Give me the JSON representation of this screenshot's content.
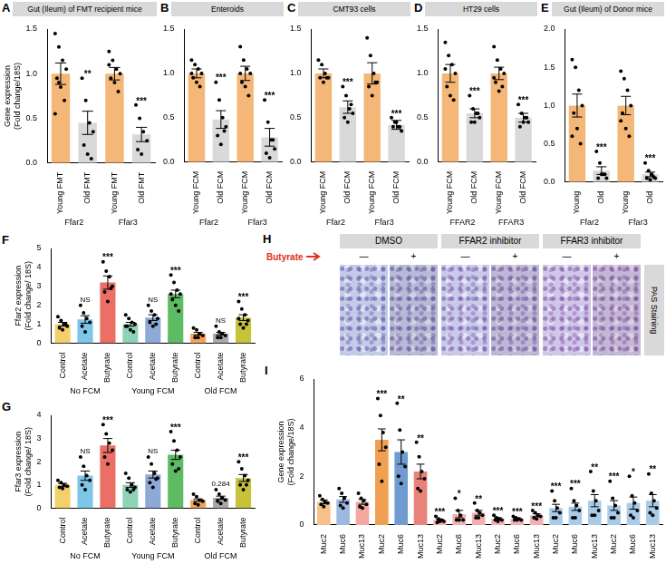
{
  "chart_data": [
    {
      "panel": "A",
      "title": "Gut (Ileum) of FMT recipient mice",
      "type": "bar",
      "y_label": [
        "Gene expression",
        "(Fold change/18S)"
      ],
      "categories": [
        "Young FMT",
        "Old FMT",
        "Young FMT",
        "Old FMT"
      ],
      "group_labels": [
        "Ffar2",
        "Ffar2",
        "Ffar3",
        "Ffar3"
      ],
      "values": [
        1.0,
        0.45,
        1.0,
        0.32
      ],
      "errors": [
        0.12,
        0.13,
        0.07,
        0.08
      ],
      "points": [
        [
          1.45,
          1.3,
          1.15,
          1.05,
          0.95,
          0.85,
          0.7,
          0.55,
          0.9
        ],
        [
          0.95,
          0.7,
          0.45,
          0.35,
          0.2,
          0.1,
          0.05
        ],
        [
          1.25,
          1.15,
          1.05,
          1.0,
          0.95,
          0.9,
          0.8,
          1.1
        ],
        [
          0.65,
          0.5,
          0.35,
          0.25,
          0.15,
          0.1
        ]
      ],
      "colors": [
        "#f4b778",
        "#d9d9d9",
        "#f4b778",
        "#d9d9d9"
      ],
      "annotations": [
        null,
        "**",
        null,
        "***"
      ],
      "ylim": [
        0,
        1.5
      ],
      "yticks": [
        {
          "value": 0,
          "label": "0.0"
        },
        0.5,
        {
          "value": 1,
          "label": "1.0"
        },
        1.5
      ],
      "marker": "circle",
      "grid": false
    },
    {
      "panel": "B",
      "title": "Enteroids",
      "type": "bar",
      "categories": [
        "Young FCM",
        "Old FCM",
        "Young FCM",
        "Old FCM"
      ],
      "group_labels": [
        "Ffar2",
        "Ffar2",
        "Ffar3",
        "Ffar3"
      ],
      "values": [
        1.0,
        0.48,
        1.0,
        0.28
      ],
      "errors": [
        0.05,
        0.1,
        0.08,
        0.1
      ],
      "points": [
        [
          1.15,
          1.1,
          1.05,
          1.0,
          0.95,
          0.9,
          0.85,
          1.0
        ],
        [
          0.9,
          0.7,
          0.5,
          0.4,
          0.3,
          0.2,
          0.35
        ],
        [
          1.3,
          1.15,
          1.05,
          1.0,
          0.9,
          0.85,
          0.75,
          1.0
        ],
        [
          0.7,
          0.45,
          0.25,
          0.15,
          0.1,
          0.05,
          0.25
        ]
      ],
      "colors": [
        "#f4b778",
        "#d9d9d9",
        "#f4b778",
        "#d9d9d9"
      ],
      "annotations": [
        null,
        "***",
        null,
        "***"
      ],
      "ylim": [
        0,
        1.5
      ],
      "yticks": [
        {
          "value": 0,
          "label": "0.0"
        },
        0.5,
        {
          "value": 1,
          "label": "1.0"
        },
        1.5
      ],
      "marker": "circle",
      "grid": false
    },
    {
      "panel": "C",
      "title": "CMT93 cells",
      "type": "bar",
      "categories": [
        "Young FCM",
        "Old FCM",
        "Young FCM",
        "Old FCM"
      ],
      "group_labels": [
        "Ffar2",
        "Ffar2",
        "Ffar3",
        "Ffar3"
      ],
      "values": [
        1.0,
        0.62,
        1.0,
        0.42
      ],
      "errors": [
        0.05,
        0.07,
        0.12,
        0.05
      ],
      "points": [
        [
          1.15,
          1.1,
          1.0,
          0.95,
          0.95,
          0.9,
          0.95
        ],
        [
          0.85,
          0.75,
          0.6,
          0.55,
          0.5,
          0.45,
          0.65
        ],
        [
          1.4,
          1.2,
          1.0,
          0.9,
          0.85,
          0.75,
          0.9
        ],
        [
          0.5,
          0.45,
          0.4,
          0.35,
          0.4,
          0.45,
          0.4
        ]
      ],
      "colors": [
        "#f4b778",
        "#d9d9d9",
        "#f4b778",
        "#d9d9d9"
      ],
      "annotations": [
        null,
        "***",
        null,
        "***"
      ],
      "ylim": [
        0,
        1.5
      ],
      "yticks": [
        {
          "value": 0,
          "label": "0.0"
        },
        0.5,
        {
          "value": 1,
          "label": "1.0"
        },
        1.5
      ],
      "marker": "circle",
      "grid": false
    },
    {
      "panel": "D",
      "title": "HT29 cells",
      "type": "bar",
      "categories": [
        "Young FCM",
        "Old FCM",
        "Young FCM",
        "Old FCM"
      ],
      "group_labels": [
        "FFAR2",
        "FFAR2",
        "FFAR3",
        "FFAR3"
      ],
      "values": [
        1.0,
        0.55,
        1.0,
        0.5
      ],
      "errors": [
        0.1,
        0.05,
        0.07,
        0.05
      ],
      "points": [
        [
          1.35,
          1.2,
          1.1,
          1.0,
          0.85,
          0.75,
          0.7,
          1.05
        ],
        [
          0.75,
          0.6,
          0.55,
          0.5,
          0.45,
          0.45,
          0.55
        ],
        [
          1.3,
          1.15,
          1.05,
          1.0,
          0.9,
          0.8,
          0.85,
          0.95
        ],
        [
          0.65,
          0.55,
          0.5,
          0.45,
          0.4,
          0.45,
          0.5
        ]
      ],
      "colors": [
        "#f4b778",
        "#d9d9d9",
        "#f4b778",
        "#d9d9d9"
      ],
      "annotations": [
        null,
        "***",
        null,
        "***"
      ],
      "ylim": [
        0,
        1.5
      ],
      "yticks": [
        {
          "value": 0,
          "label": "0.0"
        },
        0.5,
        {
          "value": 1,
          "label": "1.0"
        },
        1.5
      ],
      "marker": "circle",
      "grid": false
    },
    {
      "panel": "E",
      "title": "Gut (Ileum) of Donor mice",
      "type": "bar",
      "categories": [
        "Young",
        "Old",
        "Young",
        "Old"
      ],
      "group_labels": [
        "Ffar2",
        "Ffar2",
        "Ffar3",
        "Ffar3"
      ],
      "values": [
        1.0,
        0.15,
        1.0,
        0.1
      ],
      "errors": [
        0.15,
        0.05,
        0.12,
        0.03
      ],
      "points": [
        [
          1.6,
          1.5,
          1.2,
          1.0,
          0.9,
          0.7,
          0.5,
          0.6
        ],
        [
          0.4,
          0.25,
          0.1,
          0.05,
          0.05,
          0.1,
          0.1
        ],
        [
          1.45,
          1.35,
          1.2,
          1.0,
          0.9,
          0.7,
          0.6,
          0.8
        ],
        [
          0.25,
          0.15,
          0.1,
          0.05,
          0.05,
          0.03,
          0.07
        ]
      ],
      "colors": [
        "#f4b778",
        "#d9d9d9",
        "#f4b778",
        "#d9d9d9"
      ],
      "annotations": [
        null,
        "***",
        null,
        "***"
      ],
      "ylim": [
        0,
        2
      ],
      "yticks": [
        {
          "value": 0,
          "label": "0.0"
        },
        0.5,
        {
          "value": 1,
          "label": "1.0"
        },
        1.5,
        {
          "value": 2,
          "label": "2.0"
        }
      ],
      "marker": "circle",
      "grid": false
    },
    {
      "panel": "F",
      "type": "bar",
      "y_label": [
        "Ffar2 expression",
        "(Fold change/ 18S)"
      ],
      "categories": [
        "Control",
        "Acetate",
        "Butyrate",
        "Control",
        "Acetate",
        "Butyrate",
        "Control",
        "Acetate",
        "Butyrate"
      ],
      "group_labels": [
        "No FCM",
        "No FCM",
        "No FCM",
        "Young FCM",
        "Young FCM",
        "Young FCM",
        "Old FCM",
        "Old FCM",
        "Old FCM"
      ],
      "values": [
        1.0,
        1.25,
        3.2,
        1.0,
        1.35,
        2.6,
        0.5,
        0.5,
        1.35
      ],
      "errors": [
        0.1,
        0.2,
        0.35,
        0.1,
        0.15,
        0.2,
        0.07,
        0.07,
        0.15
      ],
      "points": [
        [
          1.4,
          1.2,
          1.0,
          0.9,
          0.8,
          0.7,
          1.0
        ],
        [
          2.0,
          1.6,
          1.3,
          1.1,
          0.9,
          0.6
        ],
        [
          4.3,
          3.8,
          3.5,
          3.0,
          2.7,
          2.2,
          2.9
        ],
        [
          1.5,
          1.3,
          1.1,
          1.0,
          0.9,
          0.7,
          0.6,
          0.9
        ],
        [
          2.0,
          1.7,
          1.5,
          1.3,
          1.1,
          0.9,
          1.0
        ],
        [
          3.6,
          3.2,
          2.8,
          2.6,
          2.3,
          2.0,
          1.7,
          2.6
        ],
        [
          0.8,
          0.7,
          0.5,
          0.4,
          0.3,
          0.3
        ],
        [
          0.9,
          0.6,
          0.5,
          0.4,
          0.3,
          0.3
        ],
        [
          2.2,
          1.8,
          1.5,
          1.2,
          1.0,
          0.8,
          1.0,
          1.3
        ]
      ],
      "colors": [
        "#f2d06b",
        "#7dc6e8",
        "#ec6f66",
        "#8fd3b6",
        "#8fa9d6",
        "#5dbb63",
        "#f3a35c",
        "#a8a8a8",
        "#c7c23a"
      ],
      "annotations": [
        null,
        "NS",
        "***",
        null,
        "NS",
        "***",
        null,
        "NS",
        "***"
      ],
      "ylim": [
        0,
        5
      ],
      "yticks": [
        0,
        1,
        2,
        3,
        4,
        5
      ],
      "marker": "circle",
      "grid": false
    },
    {
      "panel": "G",
      "type": "bar",
      "y_label": [
        "Ffar3 expression",
        "(Fold change/ 18S)"
      ],
      "categories": [
        "Control",
        "Acetate",
        "Butyrate",
        "Control",
        "Acetate",
        "Butyrate",
        "Control",
        "Acetate",
        "Butyrate"
      ],
      "group_labels": [
        "No FCM",
        "No FCM",
        "No FCM",
        "Young FCM",
        "Young FCM",
        "Young FCM",
        "Old FCM",
        "Old FCM",
        "Old FCM"
      ],
      "values": [
        1.0,
        1.4,
        2.7,
        1.0,
        1.45,
        2.3,
        0.35,
        0.45,
        1.3
      ],
      "errors": [
        0.07,
        0.2,
        0.3,
        0.1,
        0.15,
        0.2,
        0.05,
        0.07,
        0.15
      ],
      "points": [
        [
          1.2,
          1.1,
          1.0,
          0.95,
          0.9,
          0.85
        ],
        [
          2.2,
          1.8,
          1.4,
          1.2,
          1.0,
          0.8
        ],
        [
          3.6,
          3.2,
          2.8,
          2.5,
          2.2,
          1.9
        ],
        [
          1.5,
          1.3,
          1.0,
          0.9,
          0.8,
          0.7,
          0.8
        ],
        [
          2.2,
          1.9,
          1.5,
          1.3,
          1.1,
          0.9,
          1.25
        ],
        [
          3.3,
          2.9,
          2.5,
          2.2,
          1.9,
          1.6,
          1.7
        ],
        [
          0.6,
          0.5,
          0.35,
          0.3,
          0.2,
          0.15
        ],
        [
          0.8,
          0.6,
          0.45,
          0.35,
          0.3,
          0.2
        ],
        [
          2.0,
          1.7,
          1.4,
          1.2,
          1.0,
          0.8,
          1.0
        ]
      ],
      "colors": [
        "#f2d06b",
        "#7dc6e8",
        "#ec6f66",
        "#8fd3b6",
        "#8fa9d6",
        "#5dbb63",
        "#f3a35c",
        "#a8a8a8",
        "#c7c23a"
      ],
      "annotations": [
        null,
        "NS",
        "***",
        null,
        "NS",
        "***",
        null,
        "0.284",
        "***"
      ],
      "ylim": [
        0,
        4
      ],
      "yticks": [
        0,
        1,
        2,
        3,
        4
      ],
      "marker": "circle",
      "grid": false
    },
    {
      "panel": "I",
      "type": "bar",
      "y_label": [
        "Gene expression",
        "(Fold change/18S)"
      ],
      "categories": [
        "Muc2",
        "Muc6",
        "Muc13",
        "Muc2",
        "Muc6",
        "Muc13",
        "Muc2",
        "Muc6",
        "Muc13",
        "Muc2",
        "Muc6",
        "Muc13",
        "Muc2",
        "Muc6",
        "Muc13",
        "Muc2",
        "Muc6",
        "Muc13"
      ],
      "values": [
        0.95,
        1.05,
        0.95,
        3.5,
        3.0,
        2.2,
        0.2,
        0.45,
        0.5,
        0.25,
        0.25,
        0.4,
        0.7,
        0.75,
        1.0,
        0.8,
        0.9,
        1.0
      ],
      "errors": [
        0.08,
        0.12,
        0.1,
        0.45,
        0.5,
        0.3,
        0.04,
        0.15,
        0.1,
        0.05,
        0.04,
        0.06,
        0.15,
        0.15,
        0.25,
        0.2,
        0.25,
        0.25
      ],
      "points": [
        [
          1.2,
          1.05,
          0.95,
          0.9,
          0.85,
          0.75
        ],
        [
          1.5,
          1.3,
          1.1,
          0.9,
          0.8,
          0.7
        ],
        [
          1.3,
          1.1,
          1.0,
          0.85,
          0.75,
          0.7
        ],
        [
          5.2,
          4.5,
          3.8,
          3.2,
          2.5,
          1.8
        ],
        [
          5.0,
          3.9,
          3.0,
          2.4,
          2.0,
          1.7
        ],
        [
          3.4,
          2.8,
          2.2,
          1.9,
          1.5,
          1.4
        ],
        [
          0.35,
          0.25,
          0.2,
          0.15,
          0.1,
          0.15
        ],
        [
          1.1,
          0.6,
          0.4,
          0.2,
          0.2,
          0.2
        ],
        [
          0.9,
          0.6,
          0.5,
          0.4,
          0.3,
          0.3
        ],
        [
          0.4,
          0.3,
          0.25,
          0.2,
          0.2,
          0.15
        ],
        [
          0.35,
          0.3,
          0.25,
          0.2,
          0.2,
          0.2
        ],
        [
          0.6,
          0.5,
          0.4,
          0.35,
          0.3,
          0.25
        ],
        [
          1.4,
          1.0,
          0.7,
          0.5,
          0.3,
          0.3
        ],
        [
          1.5,
          1.0,
          0.8,
          0.6,
          0.3,
          0.3
        ],
        [
          2.2,
          1.4,
          1.0,
          0.6,
          0.4,
          0.4
        ],
        [
          1.8,
          1.1,
          0.8,
          0.5,
          0.3,
          0.3
        ],
        [
          2.0,
          1.2,
          0.9,
          0.6,
          0.4,
          0.3
        ],
        [
          2.1,
          1.3,
          1.0,
          0.7,
          0.5,
          0.4
        ]
      ],
      "colors": [
        "#f7c08a",
        "#9db9e0",
        "#f2a7a0",
        "#f0a050",
        "#6f9bd1",
        "#e8837a",
        "#f4b0b0",
        "#f4b0b0",
        "#f4b0b0",
        "#f4b0b0",
        "#f4b0b0",
        "#f4b0b0",
        "#a9cbe8",
        "#a9cbe8",
        "#a9cbe8",
        "#a9cbe8",
        "#a9cbe8",
        "#a9cbe8"
      ],
      "annotations": [
        null,
        null,
        null,
        "***",
        "**",
        "**",
        "***",
        "*",
        "**",
        "***",
        "***",
        "***",
        "***",
        "***",
        "**",
        "***",
        "*",
        "**"
      ],
      "ylim": [
        0,
        6
      ],
      "yticks": [
        0,
        2,
        4,
        6
      ],
      "marker": "circle",
      "grid": false
    }
  ],
  "images": {
    "panel": "H",
    "columns": [
      "DMSO",
      "FFAR2 inhibitor",
      "FFAR3 inhibitor"
    ],
    "row_label": "Butyrate",
    "conditions": [
      "—",
      "+"
    ],
    "side_label": "PAS Staining"
  }
}
